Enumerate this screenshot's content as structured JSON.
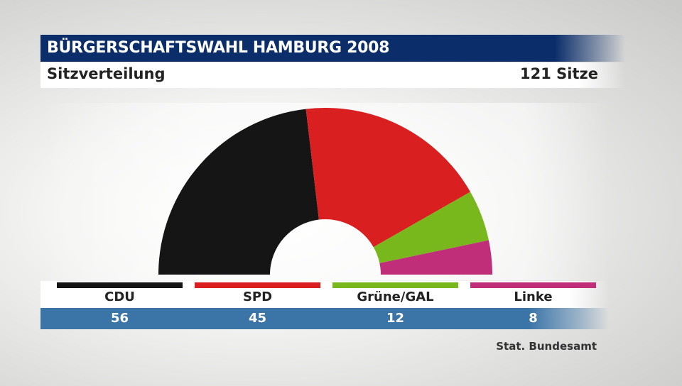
{
  "header": {
    "title": "BÜRGERSCHAFTSWAHL HAMBURG 2008",
    "subtitle": "Sitzverteilung",
    "total": "121 Sitze"
  },
  "chart_data": {
    "type": "pie",
    "total_seats": 121,
    "categories": [
      "CDU",
      "SPD",
      "Grüne/GAL",
      "Linke"
    ],
    "values": [
      56,
      45,
      12,
      8
    ],
    "colors": [
      "#151515",
      "#d91f20",
      "#78b81c",
      "#c02e7a"
    ],
    "value_labels": [
      "56",
      "45",
      "12",
      "8"
    ]
  },
  "source": "Stat. Bundesamt"
}
